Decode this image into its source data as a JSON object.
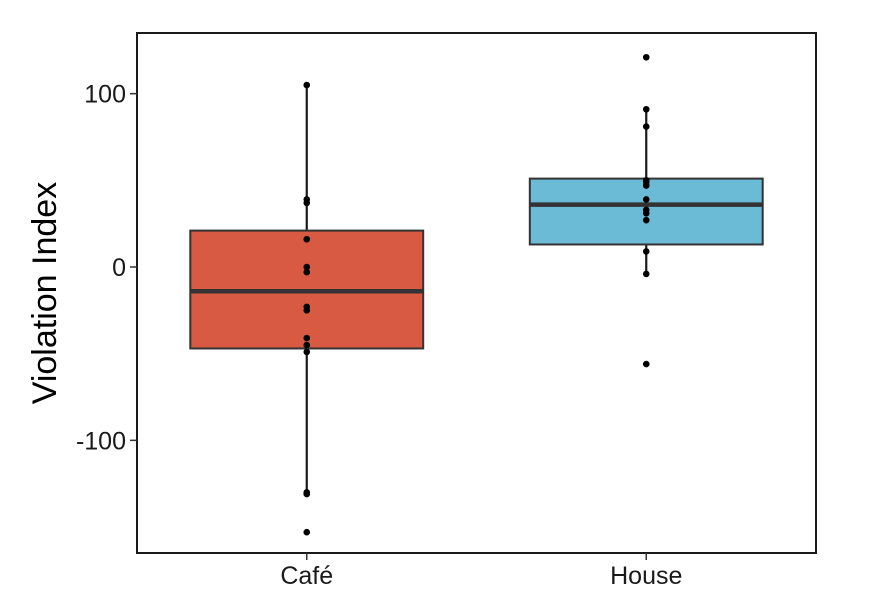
{
  "chart_data": {
    "type": "boxplot",
    "title": "",
    "xlabel": "",
    "ylabel": "Violation Index",
    "ylim": [
      -165,
      135
    ],
    "yticks": [
      100,
      0,
      -100
    ],
    "ytick_labels": [
      "100",
      "0",
      "-100"
    ],
    "grid": false,
    "legend": "none",
    "categories": [
      "Café",
      "House"
    ],
    "boxes": [
      {
        "category": "Café",
        "color": "#d95a42",
        "q1": -47,
        "median": -14,
        "q3": 21,
        "whisker_low": -131,
        "whisker_high": 105,
        "points": [
          105,
          39,
          37,
          16,
          0,
          -3,
          -23,
          -25,
          -41,
          -45,
          -49,
          -130,
          -131,
          -153
        ]
      },
      {
        "category": "House",
        "color": "#6bbbd6",
        "q1": 13,
        "median": 36,
        "q3": 51,
        "whisker_low": -4,
        "whisker_high": 91,
        "points": [
          121,
          91,
          81,
          50,
          49,
          47,
          39,
          33,
          31,
          27,
          9,
          -4,
          -56
        ]
      }
    ]
  }
}
